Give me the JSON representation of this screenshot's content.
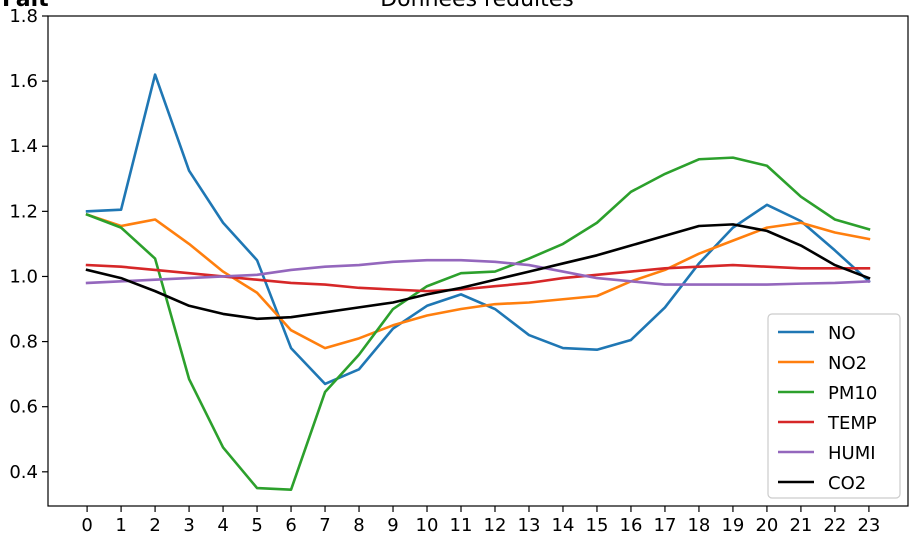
{
  "figure": {
    "corner_label": "Fait",
    "title": "Données réduites"
  },
  "chart_data": {
    "type": "line",
    "title": "Données réduites",
    "xlabel": "",
    "ylabel": "",
    "x": [
      0,
      1,
      2,
      3,
      4,
      5,
      6,
      7,
      8,
      9,
      10,
      11,
      12,
      13,
      14,
      15,
      16,
      17,
      18,
      19,
      20,
      21,
      22,
      23
    ],
    "x_ticks": [
      "0",
      "1",
      "2",
      "3",
      "4",
      "5",
      "6",
      "7",
      "8",
      "9",
      "10",
      "11",
      "12",
      "13",
      "14",
      "15",
      "16",
      "17",
      "18",
      "19",
      "20",
      "21",
      "22",
      "23"
    ],
    "y_ticks": [
      "0.4",
      "0.6",
      "0.8",
      "1.0",
      "1.2",
      "1.4",
      "1.6",
      "1.8"
    ],
    "y_tick_values": [
      0.4,
      0.6,
      0.8,
      1.0,
      1.2,
      1.4,
      1.6,
      1.8
    ],
    "xlim": [
      -1.15,
      24.15
    ],
    "ylim": [
      0.295,
      1.8
    ],
    "grid": false,
    "legend_position": "lower-right",
    "series": [
      {
        "name": "NO",
        "color": "#1f77b4",
        "values": [
          1.2,
          1.205,
          1.62,
          1.325,
          1.165,
          1.05,
          0.78,
          0.67,
          0.715,
          0.84,
          0.91,
          0.945,
          0.9,
          0.82,
          0.78,
          0.775,
          0.805,
          0.905,
          1.04,
          1.15,
          1.22,
          1.17,
          1.08,
          0.985
        ]
      },
      {
        "name": "NO2",
        "color": "#ff7f0e",
        "values": [
          1.19,
          1.155,
          1.175,
          1.1,
          1.015,
          0.95,
          0.835,
          0.78,
          0.81,
          0.85,
          0.88,
          0.9,
          0.915,
          0.92,
          0.93,
          0.94,
          0.985,
          1.02,
          1.07,
          1.11,
          1.15,
          1.165,
          1.135,
          1.115
        ]
      },
      {
        "name": "PM10",
        "color": "#2ca02c",
        "values": [
          1.19,
          1.15,
          1.055,
          0.685,
          0.475,
          0.35,
          0.345,
          0.645,
          0.76,
          0.9,
          0.97,
          1.01,
          1.015,
          1.055,
          1.1,
          1.165,
          1.26,
          1.315,
          1.36,
          1.365,
          1.34,
          1.245,
          1.175,
          1.145
        ]
      },
      {
        "name": "TEMP",
        "color": "#d62728",
        "values": [
          1.035,
          1.03,
          1.02,
          1.01,
          1.0,
          0.99,
          0.98,
          0.975,
          0.965,
          0.96,
          0.955,
          0.96,
          0.97,
          0.98,
          0.995,
          1.005,
          1.015,
          1.025,
          1.03,
          1.035,
          1.03,
          1.025,
          1.025,
          1.025
        ]
      },
      {
        "name": "HUMI",
        "color": "#9467bd",
        "values": [
          0.98,
          0.985,
          0.99,
          0.995,
          1.0,
          1.005,
          1.02,
          1.03,
          1.035,
          1.045,
          1.05,
          1.05,
          1.045,
          1.035,
          1.015,
          0.995,
          0.985,
          0.975,
          0.975,
          0.975,
          0.975,
          0.978,
          0.98,
          0.985
        ]
      },
      {
        "name": "CO2",
        "color": "#000000",
        "values": [
          1.02,
          0.995,
          0.955,
          0.91,
          0.885,
          0.87,
          0.875,
          0.89,
          0.905,
          0.92,
          0.945,
          0.965,
          0.99,
          1.015,
          1.04,
          1.065,
          1.095,
          1.125,
          1.155,
          1.16,
          1.14,
          1.095,
          1.035,
          0.995
        ]
      }
    ]
  }
}
